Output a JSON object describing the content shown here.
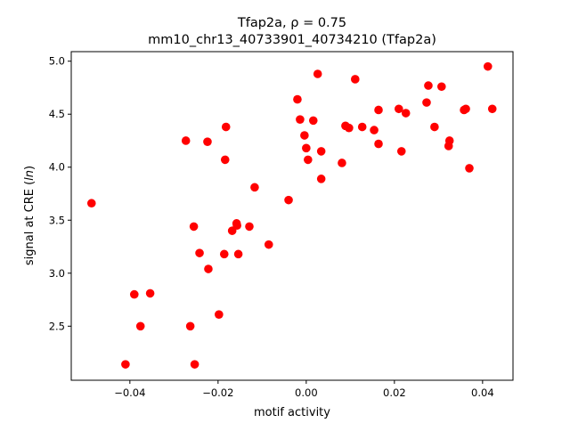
{
  "chart_data": {
    "type": "scatter",
    "title": "Tfap2a, ρ = 0.75",
    "subtitle": "mm10_chr13_40733901_40734210 (Tfap2a)",
    "xlabel": "motif activity",
    "ylabel": "signal at CRE (ln)",
    "ylabel_prefix": "signal at CRE (",
    "ylabel_italic": "ln",
    "ylabel_suffix": ")",
    "xlim": [
      -0.0533,
      0.0469
    ],
    "ylim": [
      1.99,
      5.09
    ],
    "xticks": [
      -0.04,
      -0.02,
      0.0,
      0.02,
      0.04
    ],
    "xtick_labels": [
      "−0.04",
      "−0.02",
      "0.00",
      "0.02",
      "0.04"
    ],
    "yticks": [
      2.5,
      3.0,
      3.5,
      4.0,
      4.5,
      5.0
    ],
    "ytick_labels": [
      "2.5",
      "3.0",
      "3.5",
      "4.0",
      "4.5",
      "5.0"
    ],
    "grid": false,
    "marker_color": "#ff0000",
    "points": [
      [
        -0.0487,
        3.66
      ],
      [
        -0.041,
        2.14
      ],
      [
        -0.039,
        2.8
      ],
      [
        -0.0376,
        2.5
      ],
      [
        -0.0354,
        2.81
      ],
      [
        -0.0273,
        4.25
      ],
      [
        -0.0263,
        2.5
      ],
      [
        -0.0255,
        3.44
      ],
      [
        -0.0253,
        2.14
      ],
      [
        -0.0242,
        3.19
      ],
      [
        -0.0224,
        4.24
      ],
      [
        -0.0222,
        3.04
      ],
      [
        -0.0198,
        2.61
      ],
      [
        -0.0186,
        3.18
      ],
      [
        -0.0184,
        4.07
      ],
      [
        -0.0182,
        4.38
      ],
      [
        -0.0168,
        3.4
      ],
      [
        -0.0158,
        3.47
      ],
      [
        -0.0157,
        3.45
      ],
      [
        -0.0154,
        3.18
      ],
      [
        -0.0129,
        3.44
      ],
      [
        -0.0117,
        3.81
      ],
      [
        -0.0085,
        3.27
      ],
      [
        -0.004,
        3.69
      ],
      [
        -0.002,
        4.64
      ],
      [
        -0.0014,
        4.45
      ],
      [
        -0.0004,
        4.3
      ],
      [
        0.0,
        4.18
      ],
      [
        0.0004,
        4.07
      ],
      [
        0.0016,
        4.44
      ],
      [
        0.0026,
        4.88
      ],
      [
        0.0034,
        4.15
      ],
      [
        0.0034,
        3.89
      ],
      [
        0.0081,
        4.04
      ],
      [
        0.0089,
        4.39
      ],
      [
        0.0097,
        4.37
      ],
      [
        0.0111,
        4.83
      ],
      [
        0.0127,
        4.38
      ],
      [
        0.0154,
        4.35
      ],
      [
        0.0164,
        4.54
      ],
      [
        0.0164,
        4.22
      ],
      [
        0.021,
        4.55
      ],
      [
        0.0216,
        4.15
      ],
      [
        0.0226,
        4.51
      ],
      [
        0.0273,
        4.61
      ],
      [
        0.0277,
        4.77
      ],
      [
        0.0291,
        4.38
      ],
      [
        0.0307,
        4.76
      ],
      [
        0.0323,
        4.2
      ],
      [
        0.0325,
        4.25
      ],
      [
        0.0358,
        4.54
      ],
      [
        0.0362,
        4.55
      ],
      [
        0.037,
        3.99
      ],
      [
        0.0412,
        4.95
      ],
      [
        0.0422,
        4.55
      ]
    ]
  }
}
